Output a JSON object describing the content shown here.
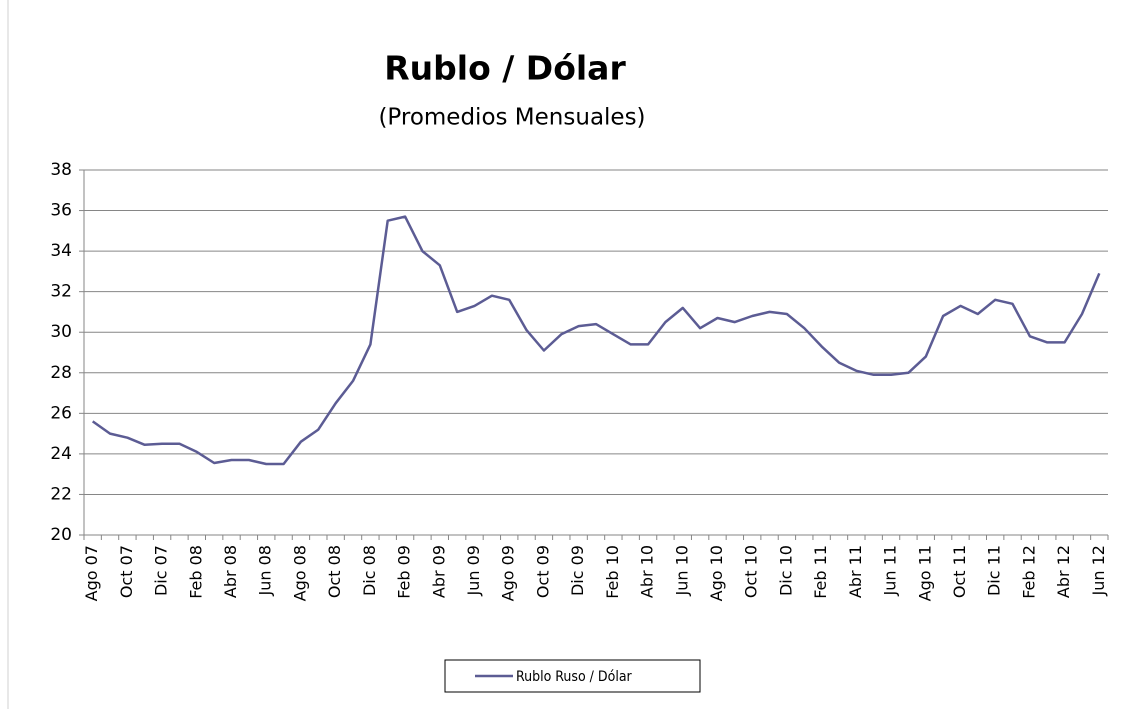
{
  "chart_data": {
    "type": "line",
    "title": "Rublo / Dólar",
    "subtitle": "(Promedios Mensuales)",
    "categories": [
      "Ago 07",
      null,
      "Oct 07",
      null,
      "Dic 07",
      null,
      "Feb 08",
      null,
      "Abr 08",
      null,
      "Jun 08",
      null,
      "Ago 08",
      null,
      "Oct 08",
      null,
      "Dic 08",
      null,
      "Feb 09",
      null,
      "Abr 09",
      null,
      "Jun 09",
      null,
      "Ago 09",
      null,
      "Oct 09",
      null,
      "Dic 09",
      null,
      "Feb 10",
      null,
      "Abr 10",
      null,
      "Jun 10",
      null,
      "Ago 10",
      null,
      "Oct 10",
      null,
      "Dic 10",
      null,
      "Feb 11",
      null,
      "Abr 11",
      null,
      "Jun 11",
      null,
      "Ago 11",
      null,
      "Oct 11",
      null,
      "Dic 11",
      null,
      "Feb 12",
      null,
      "Abr 12",
      null,
      "Jun 12"
    ],
    "series": [
      {
        "name": "Rublo Ruso / Dólar",
        "color": "#5c5c94",
        "values": [
          25.6,
          25.0,
          24.8,
          24.45,
          24.5,
          24.5,
          24.1,
          23.55,
          23.7,
          23.7,
          23.5,
          23.5,
          24.6,
          25.2,
          26.5,
          27.6,
          29.4,
          35.5,
          35.7,
          34.0,
          33.3,
          31.0,
          31.3,
          31.8,
          31.6,
          30.1,
          29.1,
          29.9,
          30.3,
          30.4,
          29.9,
          29.4,
          29.4,
          30.5,
          31.2,
          30.2,
          30.7,
          30.5,
          30.8,
          31.0,
          30.9,
          30.2,
          29.3,
          28.5,
          28.1,
          27.9,
          27.9,
          28.0,
          28.8,
          30.8,
          31.3,
          30.9,
          31.6,
          31.4,
          29.8,
          29.5,
          29.5,
          30.9,
          32.9
        ]
      }
    ],
    "ylim": [
      20,
      38
    ],
    "yticks": [
      20,
      22,
      24,
      26,
      28,
      30,
      32,
      34,
      36,
      38
    ],
    "grid": true
  }
}
